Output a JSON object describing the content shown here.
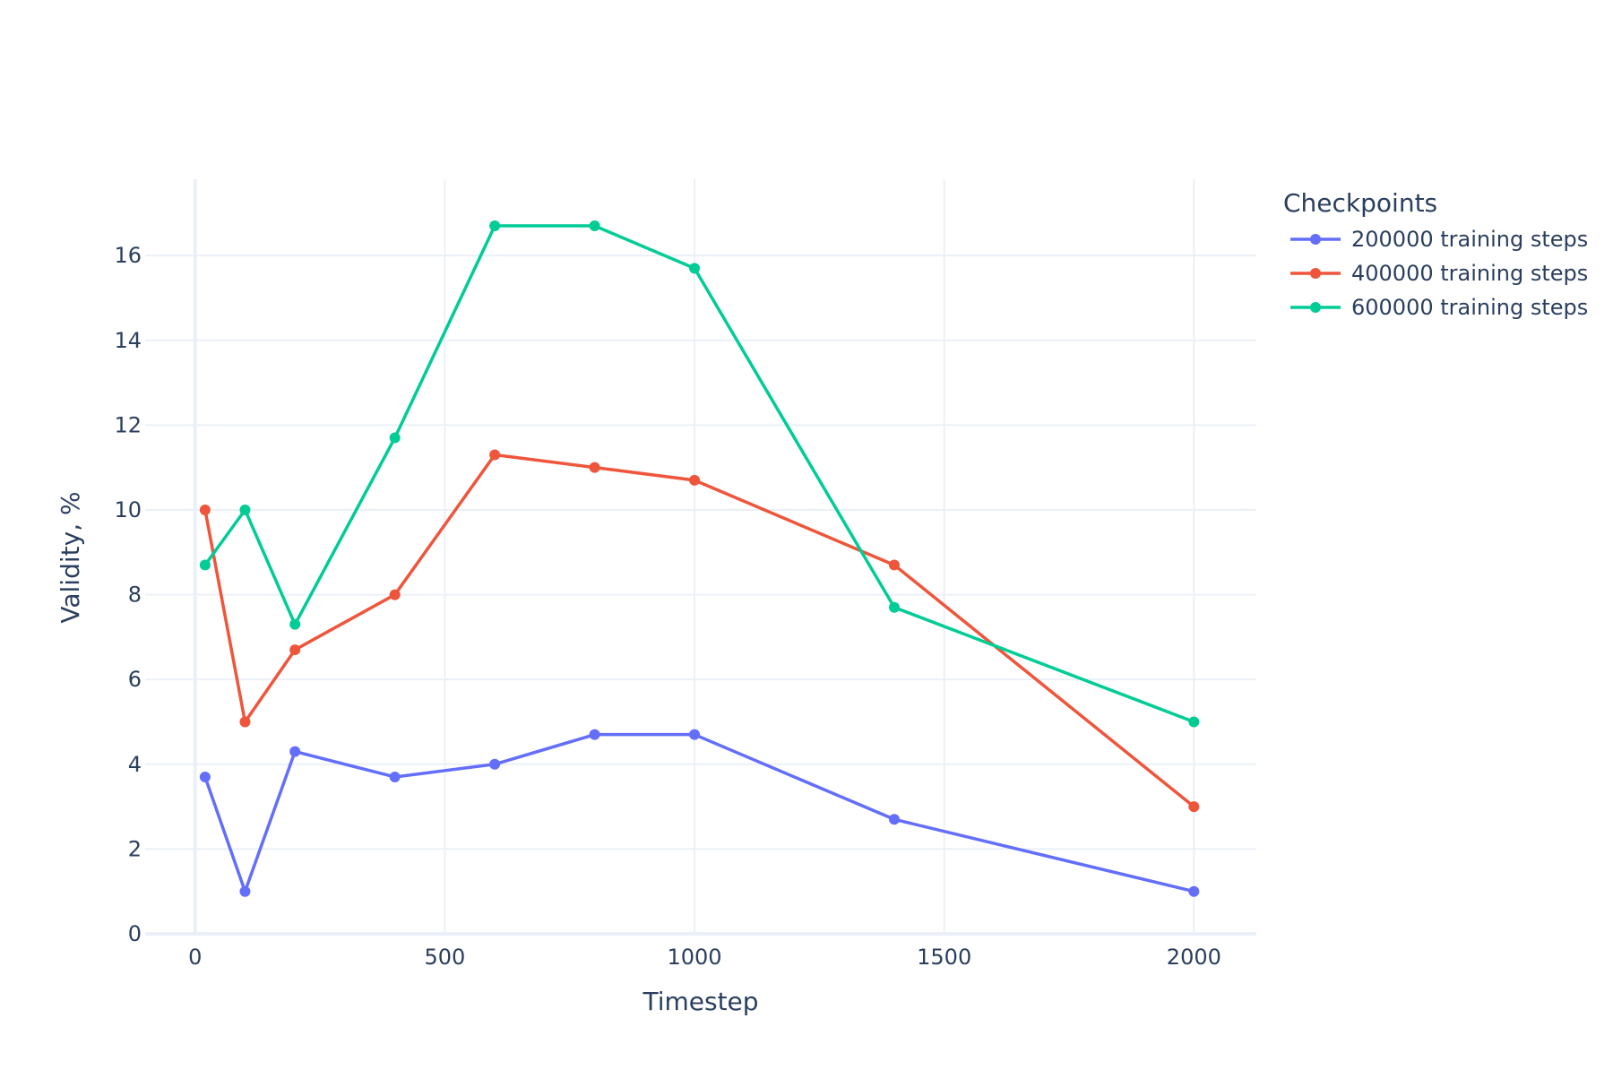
{
  "chart_data": {
    "type": "line",
    "title": "",
    "xlabel": "Timestep",
    "ylabel": "Validity, %",
    "xlim": [
      -100,
      2125
    ],
    "ylim": [
      0,
      17.8
    ],
    "x_ticks": [
      0,
      500,
      1000,
      1500,
      2000
    ],
    "y_ticks": [
      0,
      2,
      4,
      6,
      8,
      10,
      12,
      14,
      16
    ],
    "grid": true,
    "legend_title": "Checkpoints",
    "legend_position": "right",
    "x": [
      20,
      100,
      200,
      400,
      600,
      800,
      1000,
      1400,
      2000
    ],
    "series": [
      {
        "name": "200000 training steps",
        "color": "#636efa",
        "values": [
          3.7,
          1.0,
          4.3,
          3.7,
          4.0,
          4.7,
          4.7,
          2.7,
          1.0
        ]
      },
      {
        "name": "400000 training steps",
        "color": "#ef553b",
        "values": [
          10.0,
          5.0,
          6.7,
          8.0,
          11.3,
          11.0,
          10.7,
          8.7,
          3.0
        ]
      },
      {
        "name": "600000 training steps",
        "color": "#00cc96",
        "values": [
          8.7,
          10.0,
          7.3,
          11.7,
          16.7,
          16.7,
          15.7,
          7.7,
          5.0
        ]
      }
    ]
  }
}
